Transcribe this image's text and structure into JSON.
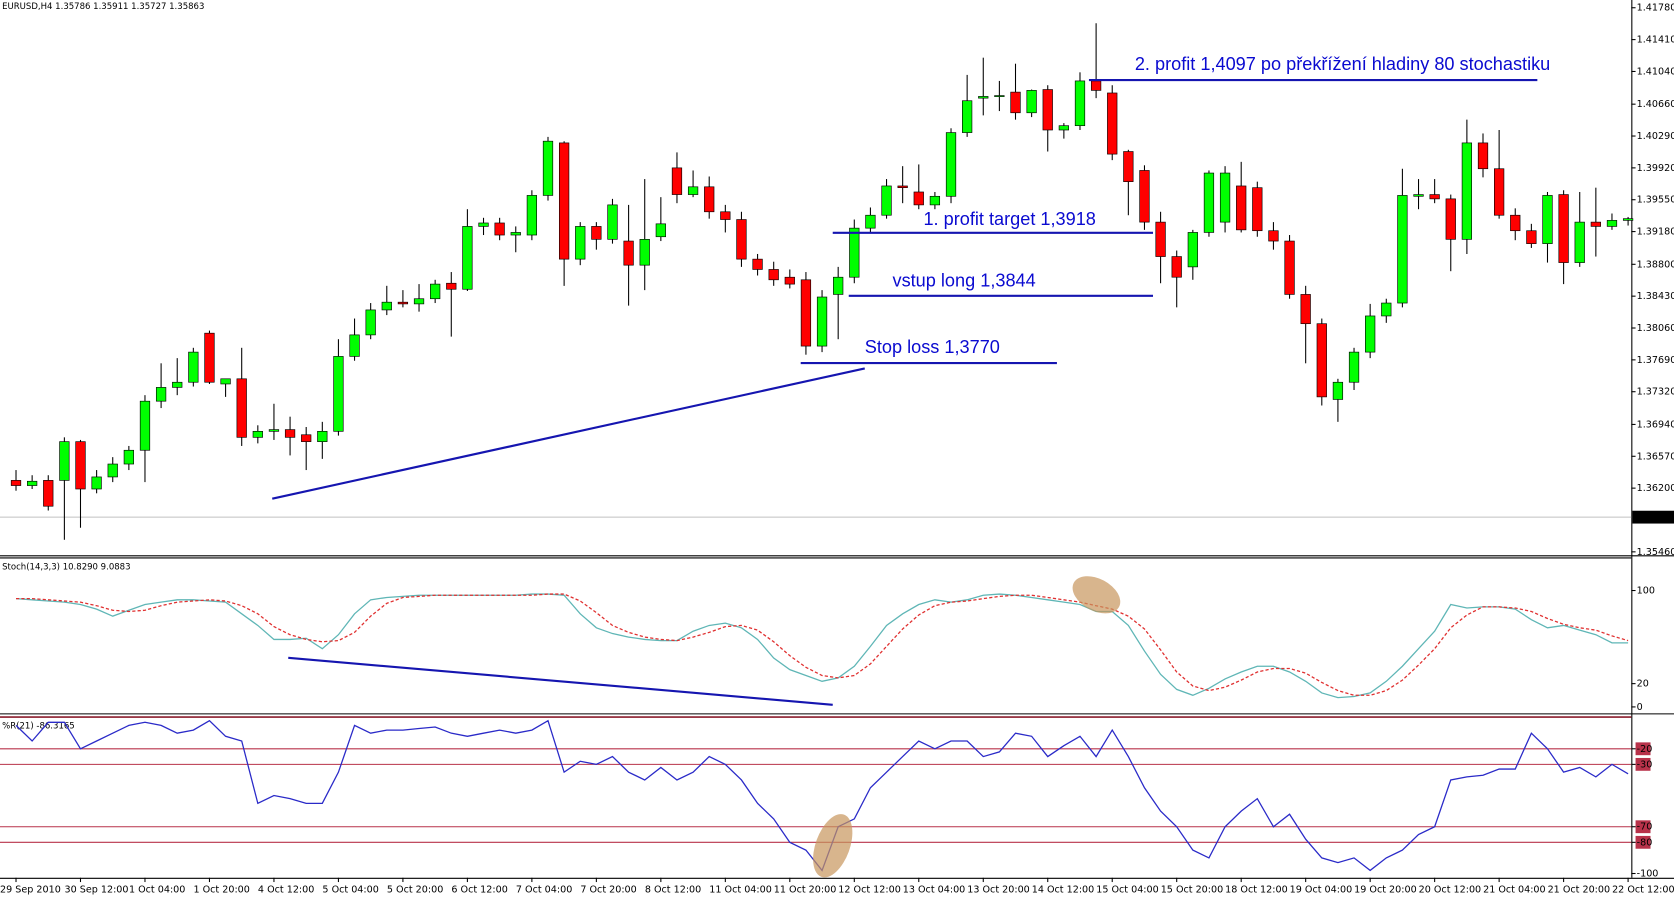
{
  "chart_data": [
    {
      "type": "candlestick",
      "title": "EURUSD,H4  1.35786 1.35911 1.35727 1.35863",
      "categories": [
        "29 Sep 2010",
        null,
        null,
        null,
        "30 Sep 12:00",
        null,
        null,
        null,
        "1 Oct 04:00",
        null,
        null,
        null,
        "1 Oct 20:00",
        null,
        null,
        null,
        "4 Oct 12:00",
        null,
        null,
        null,
        "5 Oct 04:00",
        null,
        null,
        null,
        "5 Oct 20:00",
        null,
        null,
        null,
        "6 Oct 12:00",
        null,
        null,
        null,
        "7 Oct 04:00",
        null,
        null,
        null,
        "7 Oct 20:00",
        null,
        null,
        null,
        "8 Oct 12:00",
        null,
        null,
        null,
        "11 Oct 04:00",
        null,
        null,
        null,
        "11 Oct 20:00",
        null,
        null,
        null,
        "12 Oct 12:00",
        null,
        null,
        null,
        "13 Oct 04:00",
        null,
        null,
        null,
        "13 Oct 20:00",
        null,
        null,
        null,
        "14 Oct 12:00",
        null,
        null,
        null,
        "15 Oct 04:00",
        null,
        null,
        null,
        "15 Oct 20:00",
        null,
        null,
        null,
        "18 Oct 12:00",
        null,
        null,
        null,
        "19 Oct 04:00",
        null,
        null,
        null,
        "19 Oct 20:00",
        null,
        null,
        null,
        "20 Oct 12:00",
        null,
        null,
        null,
        "21 Oct 04:00",
        null,
        null,
        null,
        "21 Oct 20:00",
        null,
        null,
        null,
        "22 Oct 12:00"
      ],
      "open": [
        1.3629,
        1.3623,
        1.3629,
        1.3629,
        1.3674,
        1.3619,
        1.3633,
        1.3648,
        1.3664,
        1.3721,
        1.3737,
        1.3743,
        1.38,
        1.3741,
        1.3747,
        1.3679,
        1.3686,
        1.3688,
        1.3682,
        1.3674,
        1.3686,
        1.3773,
        1.3798,
        1.3827,
        1.3836,
        1.3834,
        1.384,
        1.3858,
        1.3851,
        1.3924,
        1.3928,
        1.3914,
        1.3914,
        1.396,
        1.4021,
        1.3886,
        1.3924,
        1.3909,
        1.3907,
        1.3879,
        1.3912,
        1.3992,
        1.3961,
        1.397,
        1.3941,
        1.3932,
        1.3886,
        1.3874,
        1.3865,
        1.3862,
        1.3785,
        1.3845,
        1.3865,
        1.3922,
        1.3937,
        1.3971,
        1.3964,
        1.3949,
        1.3959,
        1.4033,
        1.4073,
        1.4075,
        1.408,
        1.4056,
        1.4083,
        1.4036,
        1.4041,
        1.4093,
        1.4079,
        1.4011,
        1.3989,
        1.3929,
        1.3889,
        1.3877,
        1.3917,
        1.3929,
        1.3971,
        1.3969,
        1.3919,
        1.3907,
        1.3845,
        1.3811,
        1.3723,
        1.3743,
        1.3778,
        1.382,
        1.3835,
        1.3959,
        1.3961,
        1.3956,
        1.3909,
        1.4021,
        1.3991,
        1.3937,
        1.3919,
        1.3904,
        1.3961,
        1.3882,
        1.3929,
        1.3924,
        1.3931
      ],
      "high": [
        1.3641,
        1.3635,
        1.3635,
        1.3679,
        1.3676,
        1.3641,
        1.3656,
        1.3669,
        1.3728,
        1.3765,
        1.3771,
        1.3783,
        1.3803,
        1.3747,
        1.3783,
        1.3693,
        1.3718,
        1.3703,
        1.3691,
        1.3697,
        1.3793,
        1.3817,
        1.3835,
        1.3855,
        1.385,
        1.3857,
        1.3862,
        1.3871,
        1.3944,
        1.3934,
        1.3934,
        1.3924,
        1.3966,
        1.4028,
        1.4023,
        1.3929,
        1.3929,
        1.3956,
        1.3949,
        1.3979,
        1.3958,
        1.401,
        1.3989,
        1.3982,
        1.3949,
        1.3941,
        1.3892,
        1.3883,
        1.3874,
        1.3871,
        1.385,
        1.3877,
        1.3932,
        1.3946,
        1.3979,
        1.3994,
        1.3996,
        1.3964,
        1.4038,
        1.41,
        1.412,
        1.4093,
        1.4113,
        1.4083,
        1.4088,
        1.4044,
        1.4103,
        1.416,
        1.4088,
        1.4013,
        1.3995,
        1.3941,
        1.3896,
        1.392,
        1.3989,
        1.3994,
        1.3999,
        1.3976,
        1.3929,
        1.3914,
        1.3855,
        1.3817,
        1.3747,
        1.3783,
        1.3834,
        1.384,
        1.3991,
        1.3979,
        1.3979,
        1.3961,
        1.4048,
        1.4032,
        1.4036,
        1.3945,
        1.3927,
        1.3964,
        1.3966,
        1.3964,
        1.3969,
        1.3939,
        1.3935
      ],
      "low": [
        1.3617,
        1.3619,
        1.3594,
        1.356,
        1.3574,
        1.3614,
        1.3627,
        1.3641,
        1.3627,
        1.3713,
        1.3728,
        1.3738,
        1.3741,
        1.3726,
        1.3669,
        1.3672,
        1.3676,
        1.3658,
        1.3641,
        1.3654,
        1.3681,
        1.3768,
        1.3793,
        1.3821,
        1.383,
        1.3825,
        1.3835,
        1.3796,
        1.3849,
        1.3914,
        1.3908,
        1.3894,
        1.3908,
        1.3954,
        1.3855,
        1.3879,
        1.3897,
        1.3904,
        1.3832,
        1.385,
        1.3907,
        1.3951,
        1.3958,
        1.3933,
        1.3917,
        1.3877,
        1.3867,
        1.3855,
        1.3852,
        1.3775,
        1.3778,
        1.3793,
        1.3858,
        1.3917,
        1.3933,
        1.3951,
        1.3944,
        1.3944,
        1.3951,
        1.4028,
        1.4053,
        1.4058,
        1.4048,
        1.4051,
        1.4011,
        1.4026,
        1.4036,
        1.4073,
        1.4001,
        1.3937,
        1.392,
        1.3858,
        1.383,
        1.3862,
        1.3912,
        1.3917,
        1.3917,
        1.3912,
        1.3897,
        1.384,
        1.3765,
        1.3716,
        1.3697,
        1.3734,
        1.3771,
        1.3812,
        1.383,
        1.3944,
        1.3951,
        1.3872,
        1.3892,
        1.3981,
        1.3933,
        1.3908,
        1.3899,
        1.3882,
        1.3857,
        1.3877,
        1.3889,
        1.392,
        1.3925
      ],
      "close": [
        1.3623,
        1.3628,
        1.3599,
        1.3674,
        1.3619,
        1.3633,
        1.3648,
        1.3664,
        1.3721,
        1.3737,
        1.3743,
        1.3778,
        1.3743,
        1.3747,
        1.3679,
        1.3686,
        1.3688,
        1.3679,
        1.3674,
        1.3686,
        1.3773,
        1.3798,
        1.3827,
        1.3836,
        1.3834,
        1.384,
        1.3857,
        1.3851,
        1.3924,
        1.3928,
        1.3914,
        1.3917,
        1.396,
        1.4023,
        1.3886,
        1.3924,
        1.3909,
        1.3949,
        1.3879,
        1.3909,
        1.3927,
        1.3961,
        1.397,
        1.3941,
        1.3932,
        1.3886,
        1.3874,
        1.3862,
        1.3857,
        1.3785,
        1.3842,
        1.3865,
        1.3922,
        1.3937,
        1.3971,
        1.3969,
        1.3949,
        1.3959,
        1.4033,
        1.407,
        1.4075,
        1.4076,
        1.4056,
        1.4082,
        1.4036,
        1.4041,
        1.4093,
        1.4082,
        1.4008,
        1.3976,
        1.3929,
        1.3889,
        1.3865,
        1.3917,
        1.3986,
        1.3986,
        1.392,
        1.3919,
        1.3907,
        1.3845,
        1.3811,
        1.3726,
        1.3743,
        1.3778,
        1.382,
        1.3835,
        1.396,
        1.3961,
        1.3956,
        1.3909,
        1.4021,
        1.3991,
        1.3937,
        1.3919,
        1.3904,
        1.396,
        1.3882,
        1.3929,
        1.3924,
        1.3931,
        1.3933
      ],
      "up_color": "#00ff00",
      "down_color": "#ff0000",
      "ylim": [
        1.3542,
        1.4187
      ],
      "yticks": [
        {
          "value": 1.4178,
          "label": "1.41780"
        },
        {
          "value": 1.4141,
          "label": "1.41410"
        },
        {
          "value": 1.4104,
          "label": "1.41040"
        },
        {
          "value": 1.4066,
          "label": "1.40660"
        },
        {
          "value": 1.4029,
          "label": "1.40290"
        },
        {
          "value": 1.3992,
          "label": "1.39920"
        },
        {
          "value": 1.3955,
          "label": "1.39550"
        },
        {
          "value": 1.3918,
          "label": "1.39180"
        },
        {
          "value": 1.388,
          "label": "1.38800"
        },
        {
          "value": 1.3843,
          "label": "1.38430"
        },
        {
          "value": 1.3806,
          "label": "1.38060"
        },
        {
          "value": 1.3769,
          "label": "1.37690"
        },
        {
          "value": 1.3732,
          "label": "1.37320"
        },
        {
          "value": 1.3694,
          "label": "1.36940"
        },
        {
          "value": 1.3657,
          "label": "1.36570"
        },
        {
          "value": 1.362,
          "label": "1.36200"
        },
        {
          "value": 1.3546,
          "label": "1.35460"
        }
      ],
      "current_price": 1.35863,
      "annotations": [
        "2. profit 1,4097 po překřížení hladiny 80 stochastiku",
        "1. profit target 1,3918",
        "vstup long 1,3844",
        "Stop loss 1,3770"
      ]
    },
    {
      "type": "line",
      "title": "Stoch(14,3,3) 10.8290 9.0883",
      "series": [
        {
          "color": "#5fb6b6",
          "values": [
            93,
            92,
            91,
            90,
            88,
            84,
            78,
            83,
            88,
            90,
            92,
            92,
            91,
            90,
            80,
            70,
            58,
            58,
            59,
            50,
            62,
            80,
            92,
            94,
            95,
            96,
            96,
            96,
            96,
            96,
            96,
            96,
            97,
            97,
            96,
            80,
            68,
            63,
            60,
            58,
            57,
            57,
            65,
            70,
            72,
            68,
            58,
            42,
            32,
            27,
            22,
            25,
            35,
            52,
            70,
            80,
            88,
            92,
            90,
            92,
            96,
            97,
            96,
            94,
            92,
            90,
            88,
            82,
            82,
            70,
            48,
            28,
            15,
            10,
            16,
            24,
            30,
            35,
            35,
            30,
            22,
            12,
            8,
            9,
            12,
            22,
            35,
            50,
            65,
            88,
            85,
            86,
            86,
            84,
            75,
            68,
            70,
            66,
            62,
            55,
            55
          ]
        },
        {
          "color": "#e03030",
          "dashed": true,
          "values": [
            93,
            93,
            92,
            91,
            90,
            87,
            83,
            82,
            83,
            87,
            90,
            91,
            92,
            91,
            87,
            80,
            69,
            62,
            58,
            56,
            57,
            64,
            78,
            89,
            94,
            95,
            96,
            96,
            96,
            96,
            96,
            96,
            96,
            97,
            97,
            91,
            81,
            70,
            64,
            60,
            58,
            57,
            60,
            64,
            69,
            70,
            66,
            56,
            44,
            34,
            27,
            25,
            27,
            37,
            52,
            67,
            79,
            87,
            90,
            91,
            93,
            95,
            96,
            96,
            94,
            92,
            90,
            87,
            84,
            78,
            67,
            49,
            30,
            18,
            14,
            17,
            23,
            30,
            33,
            33,
            29,
            21,
            14,
            10,
            10,
            14,
            23,
            36,
            50,
            68,
            79,
            86,
            86,
            85,
            82,
            76,
            71,
            68,
            66,
            61,
            57
          ]
        }
      ],
      "ylim": [
        0,
        100
      ],
      "yticks": [
        100,
        20,
        0
      ]
    },
    {
      "type": "line",
      "title": "%R(21) -86.3165",
      "series": [
        {
          "color": "#2a2ac8",
          "values": [
            -5,
            -15,
            -3,
            -3,
            -20,
            -15,
            -10,
            -5,
            -3,
            -5,
            -10,
            -8,
            -2,
            -12,
            -15,
            -55,
            -50,
            -52,
            -55,
            -55,
            -35,
            -5,
            -10,
            -8,
            -8,
            -7,
            -6,
            -10,
            -12,
            -10,
            -8,
            -10,
            -8,
            -2,
            -35,
            -28,
            -30,
            -25,
            -35,
            -40,
            -32,
            -40,
            -35,
            -25,
            -30,
            -40,
            -55,
            -65,
            -80,
            -85,
            -98,
            -70,
            -65,
            -45,
            -35,
            -25,
            -15,
            -20,
            -15,
            -15,
            -25,
            -22,
            -10,
            -12,
            -25,
            -18,
            -12,
            -25,
            -8,
            -25,
            -45,
            -60,
            -70,
            -85,
            -90,
            -70,
            -60,
            -52,
            -70,
            -62,
            -78,
            -90,
            -93,
            -90,
            -98,
            -90,
            -85,
            -75,
            -70,
            -40,
            -38,
            -37,
            -33,
            -33,
            -10,
            -20,
            -35,
            -32,
            -38,
            -30,
            -36
          ]
        }
      ],
      "ylim": [
        -100,
        0
      ],
      "yticks": [
        -20,
        -30,
        -70,
        -80,
        -100
      ],
      "levels": [
        -20,
        -30,
        -70,
        -80
      ],
      "level_color": "#b8324a"
    }
  ]
}
